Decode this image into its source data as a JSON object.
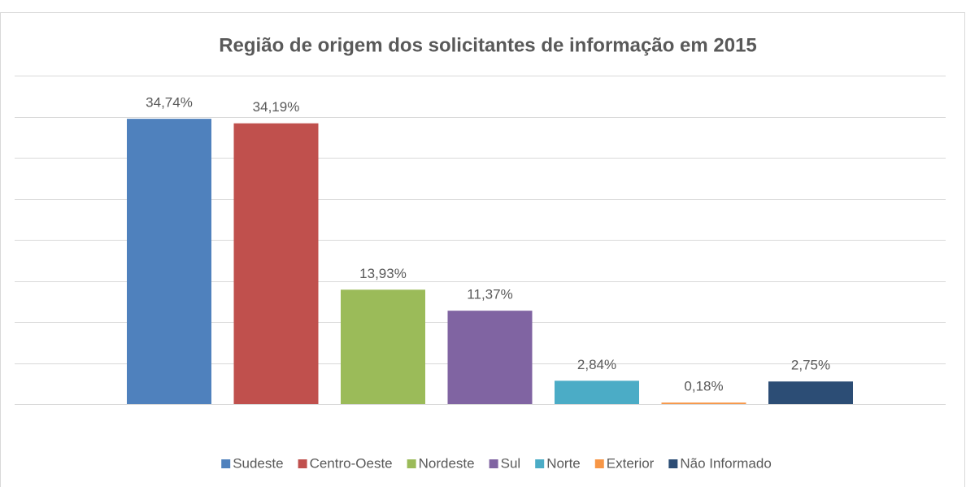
{
  "chart_data": {
    "type": "bar",
    "title": "Região de origem dos solicitantes de informação em 2015",
    "categories": [
      "Sudeste",
      "Centro-Oeste",
      "Nordeste",
      "Sul",
      "Norte",
      "Exterior",
      "Não Informado"
    ],
    "values": [
      34.74,
      34.19,
      13.93,
      11.37,
      2.84,
      0.18,
      2.75
    ],
    "value_labels": [
      "34,74%",
      "34,19%",
      "13,93%",
      "11,37%",
      "2,84%",
      "0,18%",
      "2,75%"
    ],
    "colors": [
      "#4f81bd",
      "#c0504d",
      "#9bbb59",
      "#8064a2",
      "#4bacc6",
      "#f79646",
      "#2c4d75"
    ],
    "ylim": [
      0,
      40
    ],
    "yticks": [
      0,
      5,
      10,
      15,
      20,
      25,
      30,
      35,
      40
    ],
    "grid": true,
    "legend": "bottom"
  }
}
